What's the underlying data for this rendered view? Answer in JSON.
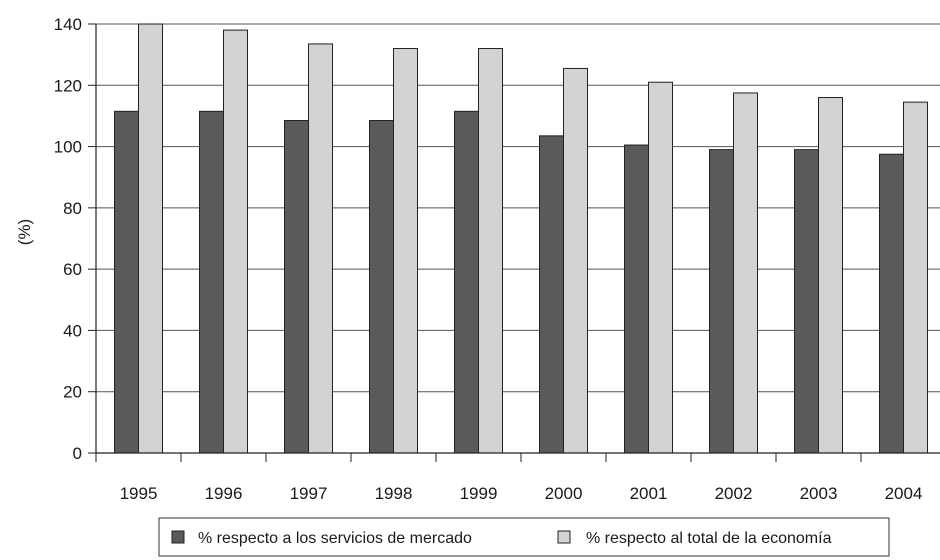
{
  "chart_data": {
    "type": "bar",
    "categories": [
      "1995",
      "1996",
      "1997",
      "1998",
      "1999",
      "2000",
      "2001",
      "2002",
      "2003",
      "2004"
    ],
    "series": [
      {
        "name": "% respecto a los servicios de mercado",
        "color": "#5a5a5a",
        "values": [
          111.5,
          111.5,
          108.5,
          108.5,
          111.5,
          103.5,
          100.5,
          99,
          99,
          97.5
        ]
      },
      {
        "name": "% respecto al total de la economía",
        "color": "#d3d3d3",
        "values": [
          140,
          138,
          133.5,
          132,
          132,
          125.5,
          121,
          117.5,
          116,
          114.5
        ]
      }
    ],
    "ylabel": "(%)",
    "ylim": [
      0,
      140
    ],
    "yticks": [
      "0",
      "20",
      "40",
      "60",
      "80",
      "100",
      "120",
      "140"
    ],
    "grid": true,
    "legend_position": "bottom"
  }
}
